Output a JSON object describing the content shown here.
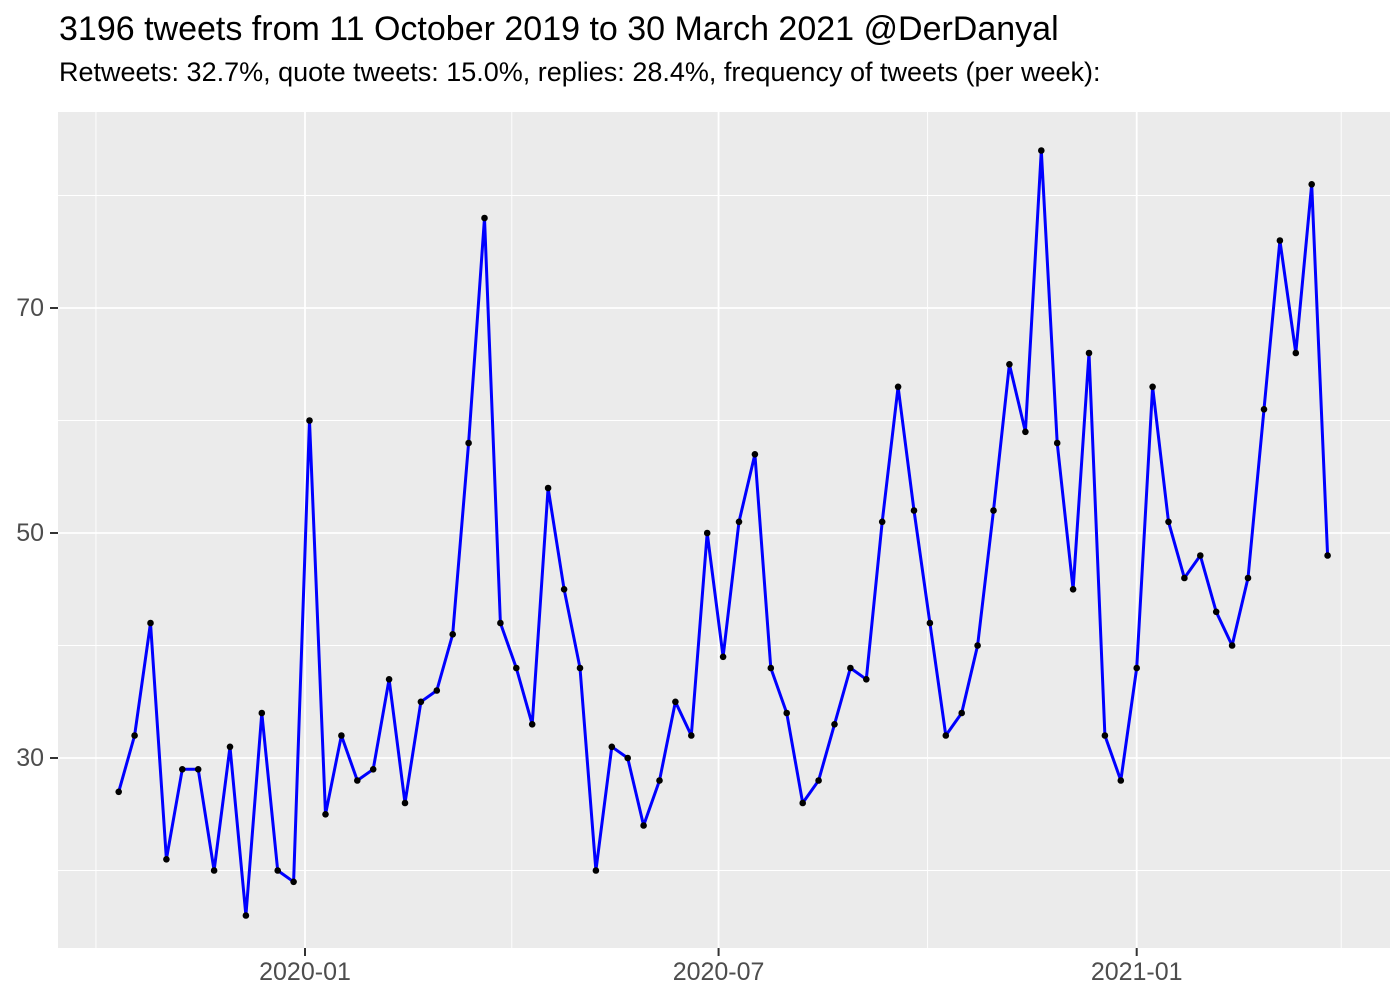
{
  "header": {
    "title": "3196 tweets from 11 October 2019 to 30 March 2021 @DerDanyal",
    "subtitle": "Retweets: 32.7%, quote tweets: 15.0%, replies: 28.4%, frequency of tweets (per week):"
  },
  "chart_data": {
    "type": "line",
    "title": "3196 tweets from 11 October 2019 to 30 March 2021 @DerDanyal",
    "subtitle": "Retweets: 32.7%, quote tweets: 15.0%, replies: 28.4%, frequency of tweets (per week):",
    "series_name": "tweets per week",
    "xlabel": "",
    "ylabel": "",
    "grid": true,
    "legend_position": "none",
    "ylim": [
      13,
      87
    ],
    "x": [
      "2019-10-11",
      "2019-10-18",
      "2019-10-25",
      "2019-11-01",
      "2019-11-08",
      "2019-11-15",
      "2019-11-22",
      "2019-11-29",
      "2019-12-06",
      "2019-12-13",
      "2019-12-20",
      "2019-12-27",
      "2020-01-03",
      "2020-01-10",
      "2020-01-17",
      "2020-01-24",
      "2020-01-31",
      "2020-02-07",
      "2020-02-14",
      "2020-02-21",
      "2020-02-28",
      "2020-03-06",
      "2020-03-13",
      "2020-03-20",
      "2020-03-27",
      "2020-04-03",
      "2020-04-10",
      "2020-04-17",
      "2020-04-24",
      "2020-05-01",
      "2020-05-08",
      "2020-05-15",
      "2020-05-22",
      "2020-05-29",
      "2020-06-05",
      "2020-06-12",
      "2020-06-19",
      "2020-06-26",
      "2020-07-03",
      "2020-07-10",
      "2020-07-17",
      "2020-07-24",
      "2020-07-31",
      "2020-08-07",
      "2020-08-14",
      "2020-08-21",
      "2020-08-28",
      "2020-09-04",
      "2020-09-11",
      "2020-09-18",
      "2020-09-25",
      "2020-10-02",
      "2020-10-09",
      "2020-10-16",
      "2020-10-23",
      "2020-10-30",
      "2020-11-06",
      "2020-11-13",
      "2020-11-20",
      "2020-11-27",
      "2020-12-04",
      "2020-12-11",
      "2020-12-18",
      "2020-12-25",
      "2021-01-01",
      "2021-01-08",
      "2021-01-15",
      "2021-01-22",
      "2021-01-29",
      "2021-02-05",
      "2021-02-12",
      "2021-02-19",
      "2021-02-26",
      "2021-03-05",
      "2021-03-12",
      "2021-03-19",
      "2021-03-26"
    ],
    "values": [
      27,
      32,
      42,
      21,
      29,
      29,
      20,
      31,
      16,
      34,
      20,
      19,
      60,
      25,
      32,
      28,
      29,
      37,
      26,
      35,
      36,
      41,
      58,
      78,
      42,
      38,
      33,
      54,
      45,
      38,
      20,
      31,
      30,
      24,
      28,
      35,
      32,
      50,
      39,
      51,
      57,
      38,
      34,
      26,
      28,
      33,
      38,
      37,
      51,
      63,
      52,
      42,
      32,
      34,
      40,
      52,
      65,
      59,
      84,
      58,
      45,
      66,
      32,
      28,
      38,
      63,
      51,
      46,
      48,
      43,
      40,
      46,
      61,
      76,
      66,
      81,
      48
    ],
    "x_ticks": [
      {
        "label": "2020-01",
        "date": "2020-01-01"
      },
      {
        "label": "2020-07",
        "date": "2020-07-01"
      },
      {
        "label": "2021-01",
        "date": "2021-01-01"
      }
    ],
    "y_ticks": [
      {
        "label": "30",
        "value": 30
      },
      {
        "label": "50",
        "value": 50
      },
      {
        "label": "70",
        "value": 70
      }
    ],
    "x_minor_gridlines": [
      "2019-10-01",
      "2020-04-01",
      "2020-10-01",
      "2021-04-01"
    ],
    "y_minor_gridlines": [
      20,
      40,
      60,
      80
    ],
    "colors": {
      "line": "#0000FF",
      "point": "#000000",
      "panel_background": "#EBEBEB",
      "gridline": "#FFFFFF",
      "axis_text": "#4D4D4D",
      "tick_mark": "#333333",
      "title_text": "#000000"
    }
  }
}
